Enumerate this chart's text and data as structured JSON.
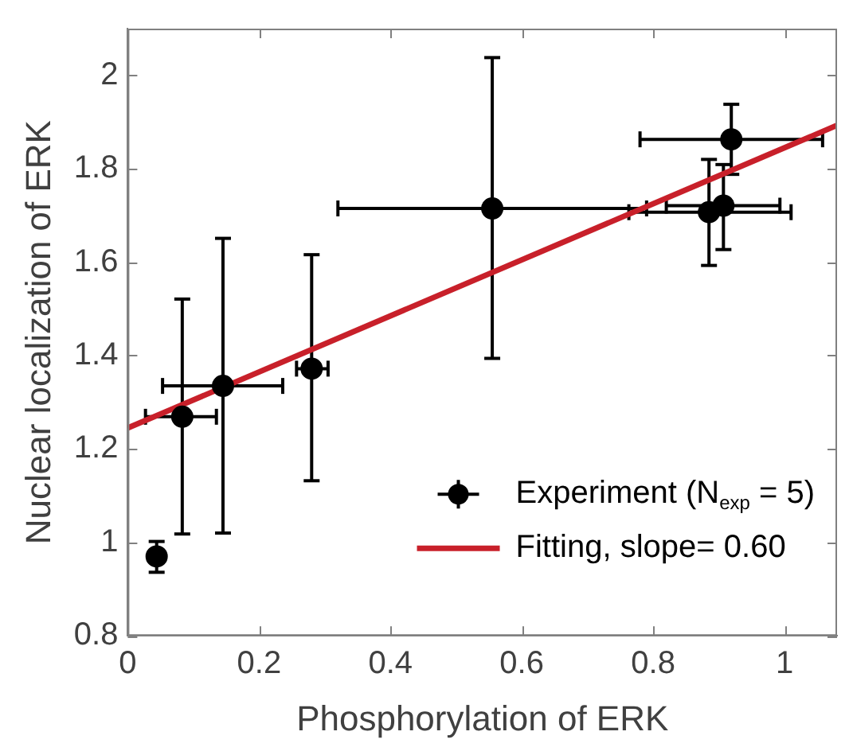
{
  "chart_data": {
    "type": "scatter",
    "xlabel": "Phosphorylation of ERK",
    "ylabel": "Nuclear localization of ERK",
    "xlim": [
      0,
      1.08
    ],
    "ylim": [
      0.8,
      2.1
    ],
    "xticks": [
      0,
      0.2,
      0.4,
      0.6,
      0.8,
      1
    ],
    "yticks": [
      0.8,
      1,
      1.2,
      1.4,
      1.6,
      1.8,
      2
    ],
    "legend": "bottom right",
    "series": [
      {
        "name": "Experiment (N$_{exp}$ = 5)",
        "type": "scatter",
        "marker": "circle",
        "color": "#000000",
        "x": [
          0.044,
          0.083,
          0.145,
          0.28,
          0.555,
          0.885,
          0.907,
          0.919
        ],
        "values": [
          0.97,
          1.269,
          1.335,
          1.372,
          1.715,
          1.707,
          1.721,
          1.863
        ],
        "errors": [
          [
            0.936,
            1.002
          ],
          [
            1.018,
            1.521
          ],
          [
            1.02,
            1.651
          ],
          [
            1.132,
            1.616
          ],
          [
            1.394,
            2.038
          ],
          [
            1.593,
            1.82
          ],
          [
            1.627,
            1.809
          ],
          [
            1.788,
            1.938
          ]
        ],
        "xerrors": [
          [
            0.037,
            0.053
          ],
          [
            0.027,
            0.135
          ],
          [
            0.053,
            0.236
          ],
          [
            0.257,
            0.305
          ],
          [
            0.32,
            0.79
          ],
          [
            0.763,
            1.01
          ],
          [
            0.82,
            0.993
          ],
          [
            0.78,
            1.058
          ]
        ]
      },
      {
        "name": "Fitting, slope= 0.60",
        "type": "line",
        "color": "#c8202a",
        "x": [
          0,
          1.08
        ],
        "values": [
          1.245,
          1.893
        ]
      }
    ]
  }
}
